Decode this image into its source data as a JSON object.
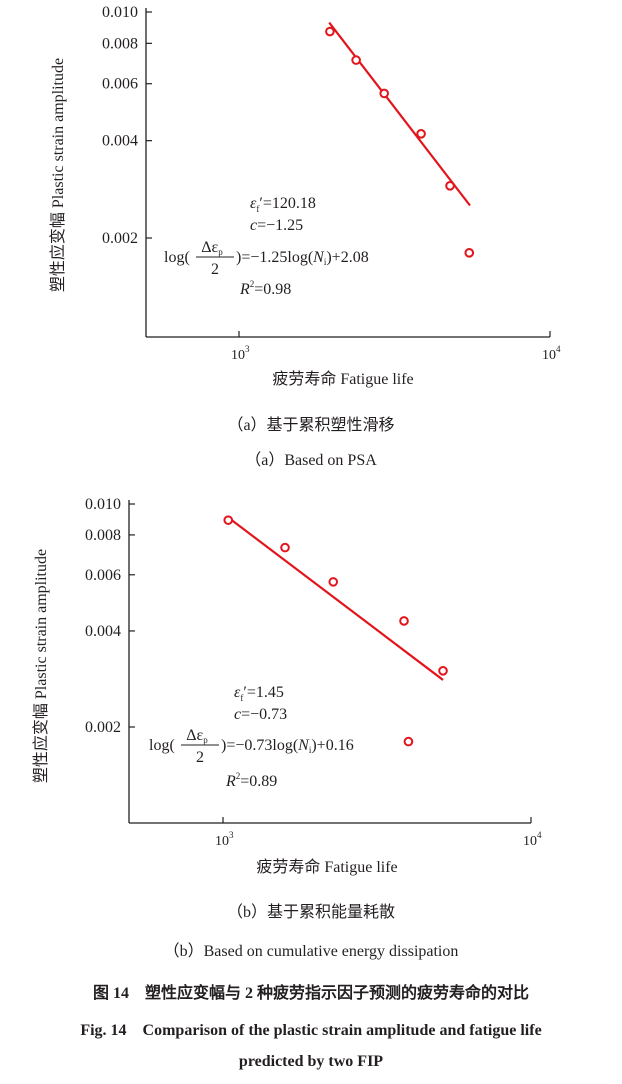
{
  "chart_data": [
    {
      "type": "scatter",
      "panel": "a",
      "xscale": "log",
      "yscale": "log",
      "xlim": [
        500,
        10000
      ],
      "ylim": [
        0.001,
        0.01
      ],
      "xlabel": "疲劳寿命 Fatigue life",
      "ylabel": "塑性应变幅 Plastic strain amplitude",
      "xticks": [
        {
          "base": "10",
          "exp": "3",
          "value": 1000
        },
        {
          "base": "10",
          "exp": "4",
          "value": 10000
        }
      ],
      "yticks": [
        {
          "label": "0.010",
          "value": 0.01
        },
        {
          "label": "0.008",
          "value": 0.008
        },
        {
          "label": "0.006",
          "value": 0.006
        },
        {
          "label": "0.004",
          "value": 0.004
        },
        {
          "label": "0.002",
          "value": 0.002
        }
      ],
      "points": {
        "x": [
          1960,
          2380,
          2930,
          3850,
          4770,
          5500
        ],
        "y": [
          0.0087,
          0.0071,
          0.0056,
          0.0042,
          0.0029,
          0.0018
        ]
      },
      "fit": {
        "slope": -1.25,
        "intercept": 2.08,
        "x_range": [
          1950,
          5530
        ]
      },
      "color": "#e3151c",
      "annotations": {
        "ef_sym": "ε",
        "ef_sub": "f",
        "ef_val": "′=120.18",
        "c_sym": "c",
        "c_val": "=−1.25",
        "eq_pre": "log(",
        "eq_num": "Δε",
        "eq_num_sub": "p",
        "eq_den": "2",
        "eq_mid": ")=−1.25log(",
        "eq_N": "N",
        "eq_N_sub": "i",
        "eq_post": ")+2.08",
        "r_sym": "R",
        "r_sup": "2",
        "r_val": "=0.98"
      }
    },
    {
      "type": "scatter",
      "panel": "b",
      "xscale": "log",
      "yscale": "log",
      "xlim": [
        500,
        10000
      ],
      "ylim": [
        0.001,
        0.01
      ],
      "xlabel": "疲劳寿命 Fatigue life",
      "ylabel": "塑性应变幅 Plastic strain amplitude",
      "xticks": [
        {
          "base": "10",
          "exp": "3",
          "value": 1000
        },
        {
          "base": "10",
          "exp": "4",
          "value": 10000
        }
      ],
      "yticks": [
        {
          "label": "0.010",
          "value": 0.01
        },
        {
          "label": "0.008",
          "value": 0.008
        },
        {
          "label": "0.006",
          "value": 0.006
        },
        {
          "label": "0.004",
          "value": 0.004
        },
        {
          "label": "0.002",
          "value": 0.002
        }
      ],
      "points": {
        "x": [
          1040,
          1590,
          2280,
          3870,
          5180,
          4000
        ],
        "y": [
          0.0089,
          0.0073,
          0.0057,
          0.0043,
          0.003,
          0.0018
        ]
      },
      "fit": {
        "slope": -0.73,
        "intercept": 0.16,
        "x_range": [
          1040,
          5180
        ]
      },
      "color": "#e3151c",
      "annotations": {
        "ef_sym": "ε",
        "ef_sub": "f",
        "ef_val": "′=1.45",
        "c_sym": "c",
        "c_val": "=−0.73",
        "eq_pre": "log(",
        "eq_num": "Δε",
        "eq_num_sub": "p",
        "eq_den": "2",
        "eq_mid": ")=−0.73log(",
        "eq_N": "N",
        "eq_N_sub": "i",
        "eq_post": ")+0.16",
        "r_sym": "R",
        "r_sup": "2",
        "r_val": "=0.89"
      }
    }
  ],
  "captions": {
    "a_cn": "（a）基于累积塑性滑移",
    "a_en": "（a）Based on PSA",
    "b_cn": "（b）基于累积能量耗散",
    "b_en": "（b）Based on cumulative energy dissipation",
    "fig_cn": "图 14　塑性应变幅与 2 种疲劳指示因子预测的疲劳寿命的对比",
    "fig_en_1": "Fig. 14　Comparison of the plastic strain amplitude and fatigue life",
    "fig_en_2": "predicted by two FIP"
  }
}
